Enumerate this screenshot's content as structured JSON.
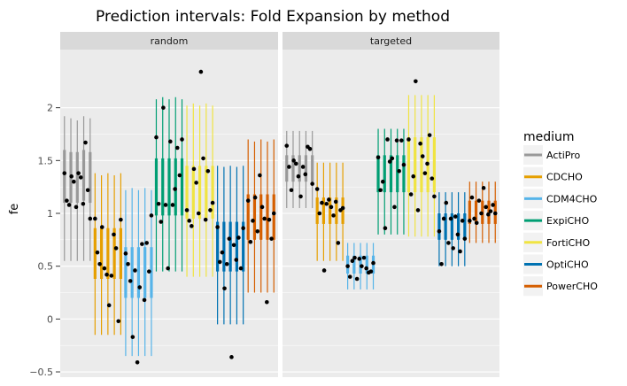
{
  "chart_data": {
    "type": "errorbar",
    "title": "Prediction intervals: Fold Expansion by method",
    "ylabel": "fe",
    "xlabel": "",
    "ylim": [
      -0.55,
      2.55
    ],
    "yticks": [
      -0.5,
      0,
      0.5,
      1,
      1.5,
      2
    ],
    "ytick_labels": [
      "−0.5",
      "0",
      "0.5",
      "1",
      "1.5",
      "2"
    ],
    "facets": [
      "random",
      "targeted"
    ],
    "legend": {
      "title": "medium",
      "position": "right",
      "entries": [
        {
          "label": "ActiPro",
          "color": "#999999"
        },
        {
          "label": "CDCHO",
          "color": "#E69F00"
        },
        {
          "label": "CDM4CHO",
          "color": "#56B4E9"
        },
        {
          "label": "ExpiCHO",
          "color": "#009E73"
        },
        {
          "label": "FortiCHO",
          "color": "#F0E442"
        },
        {
          "label": "OptiCHO",
          "color": "#0072B2"
        },
        {
          "label": "PowerCHO",
          "color": "#D55E00"
        }
      ]
    },
    "panels": [
      {
        "facet": "random",
        "groups": [
          {
            "medium": "ActiPro",
            "intervals": [
              [
                0.55,
                1.92,
                1.1,
                1.6
              ],
              [
                0.55,
                1.9,
                1.1,
                1.58
              ],
              [
                0.55,
                1.88,
                1.1,
                1.58
              ],
              [
                0.55,
                1.92,
                1.12,
                1.6
              ],
              [
                0.55,
                1.9,
                1.1,
                1.58
              ]
            ],
            "points": [
              1.38,
              1.12,
              1.08,
              1.35,
              1.3,
              1.06,
              1.38,
              1.34,
              1.09,
              1.67,
              1.22,
              0.95
            ]
          },
          {
            "medium": "CDCHO",
            "intervals": [
              [
                -0.15,
                1.38,
                0.38,
                0.86
              ],
              [
                -0.15,
                1.36,
                0.38,
                0.86
              ],
              [
                -0.15,
                1.38,
                0.38,
                0.86
              ],
              [
                -0.15,
                1.36,
                0.38,
                0.86
              ],
              [
                -0.15,
                1.38,
                0.38,
                0.86
              ]
            ],
            "points": [
              0.95,
              0.63,
              0.52,
              0.87,
              0.48,
              0.42,
              0.13,
              0.41,
              0.8,
              0.67,
              -0.02,
              0.94
            ]
          },
          {
            "medium": "CDM4CHO",
            "intervals": [
              [
                -0.35,
                1.22,
                0.2,
                0.68
              ],
              [
                -0.35,
                1.24,
                0.2,
                0.68
              ],
              [
                -0.35,
                1.22,
                0.2,
                0.68
              ],
              [
                -0.35,
                1.24,
                0.2,
                0.68
              ],
              [
                -0.35,
                1.22,
                0.2,
                0.68
              ]
            ],
            "points": [
              0.62,
              0.52,
              0.36,
              -0.17,
              0.46,
              -0.41,
              0.3,
              0.71,
              0.18,
              0.72,
              0.45,
              0.98
            ]
          },
          {
            "medium": "ExpiCHO",
            "intervals": [
              [
                0.45,
                2.08,
                0.98,
                1.52
              ],
              [
                0.45,
                2.1,
                0.98,
                1.52
              ],
              [
                0.45,
                2.08,
                0.98,
                1.52
              ],
              [
                0.45,
                2.1,
                0.98,
                1.52
              ],
              [
                0.45,
                2.08,
                0.98,
                1.52
              ]
            ],
            "points": [
              1.72,
              1.09,
              0.92,
              2.0,
              1.08,
              0.48,
              1.68,
              1.08,
              1.23,
              1.62,
              1.36,
              1.7
            ]
          },
          {
            "medium": "FortiCHO",
            "intervals": [
              [
                0.4,
                2.02,
                0.95,
                1.45
              ],
              [
                0.4,
                2.04,
                0.95,
                1.45
              ],
              [
                0.4,
                2.02,
                0.95,
                1.45
              ],
              [
                0.4,
                2.04,
                0.95,
                1.45
              ],
              [
                0.4,
                2.02,
                0.95,
                1.45
              ]
            ],
            "points": [
              1.03,
              0.93,
              0.88,
              1.42,
              1.29,
              1.0,
              2.34,
              1.52,
              0.94,
              1.4,
              1.03,
              1.1
            ]
          },
          {
            "medium": "OptiCHO",
            "intervals": [
              [
                -0.05,
                1.45,
                0.45,
                0.92
              ],
              [
                -0.05,
                1.44,
                0.45,
                0.92
              ],
              [
                -0.05,
                1.45,
                0.45,
                0.92
              ],
              [
                -0.05,
                1.44,
                0.45,
                0.92
              ],
              [
                -0.05,
                1.45,
                0.45,
                0.92
              ]
            ],
            "points": [
              0.87,
              0.54,
              0.63,
              0.29,
              0.52,
              0.76,
              -0.36,
              0.7,
              0.56,
              0.77,
              0.48,
              0.86
            ]
          },
          {
            "medium": "PowerCHO",
            "intervals": [
              [
                0.25,
                1.7,
                0.75,
                1.18
              ],
              [
                0.25,
                1.68,
                0.75,
                1.18
              ],
              [
                0.25,
                1.7,
                0.75,
                1.18
              ],
              [
                0.25,
                1.68,
                0.75,
                1.18
              ],
              [
                0.25,
                1.7,
                0.75,
                1.18
              ]
            ],
            "points": [
              1.12,
              0.73,
              0.93,
              1.15,
              0.83,
              1.36,
              1.06,
              0.95,
              0.16,
              0.94,
              0.76,
              1.0
            ]
          }
        ]
      },
      {
        "facet": "targeted",
        "groups": [
          {
            "medium": "ActiPro",
            "intervals": [
              [
                1.05,
                1.78,
                1.3,
                1.55
              ],
              [
                1.05,
                1.78,
                1.3,
                1.55
              ],
              [
                1.05,
                1.78,
                1.3,
                1.55
              ],
              [
                1.05,
                1.78,
                1.3,
                1.55
              ],
              [
                1.05,
                1.78,
                1.3,
                1.55
              ]
            ],
            "points": [
              1.64,
              1.44,
              1.22,
              1.5,
              1.47,
              1.35,
              1.16,
              1.44,
              1.37,
              1.63,
              1.61,
              1.28
            ]
          },
          {
            "medium": "CDCHO",
            "intervals": [
              [
                0.55,
                1.48,
                0.9,
                1.15
              ],
              [
                0.55,
                1.48,
                0.9,
                1.15
              ],
              [
                0.55,
                1.48,
                0.9,
                1.15
              ],
              [
                0.55,
                1.48,
                0.9,
                1.15
              ],
              [
                0.55,
                1.48,
                0.9,
                1.15
              ]
            ],
            "points": [
              1.23,
              1.0,
              1.1,
              0.46,
              1.09,
              1.13,
              1.06,
              0.98,
              1.11,
              0.72,
              1.03,
              1.05
            ]
          },
          {
            "medium": "CDM4CHO",
            "intervals": [
              [
                0.28,
                0.72,
                0.43,
                0.6
              ],
              [
                0.28,
                0.72,
                0.43,
                0.6
              ],
              [
                0.28,
                0.72,
                0.43,
                0.6
              ],
              [
                0.28,
                0.72,
                0.43,
                0.6
              ],
              [
                0.28,
                0.72,
                0.43,
                0.6
              ]
            ],
            "points": [
              0.5,
              0.4,
              0.55,
              0.58,
              0.38,
              0.57,
              0.5,
              0.58,
              0.48,
              0.44,
              0.45,
              0.53
            ]
          },
          {
            "medium": "ExpiCHO",
            "intervals": [
              [
                0.8,
                1.8,
                1.2,
                1.55
              ],
              [
                0.8,
                1.8,
                1.2,
                1.55
              ],
              [
                0.8,
                1.8,
                1.2,
                1.55
              ],
              [
                0.8,
                1.8,
                1.2,
                1.55
              ],
              [
                0.8,
                1.8,
                1.2,
                1.55
              ]
            ],
            "points": [
              1.53,
              1.22,
              1.3,
              0.86,
              1.7,
              1.49,
              1.52,
              1.06,
              1.69,
              1.4,
              1.69,
              1.46
            ]
          },
          {
            "medium": "FortiCHO",
            "intervals": [
              [
                0.78,
                2.12,
                1.2,
                1.72
              ],
              [
                0.78,
                2.12,
                1.2,
                1.72
              ],
              [
                0.78,
                2.12,
                1.2,
                1.72
              ],
              [
                0.78,
                2.12,
                1.2,
                1.72
              ],
              [
                0.78,
                2.12,
                1.2,
                1.72
              ]
            ],
            "points": [
              1.7,
              1.18,
              1.35,
              2.25,
              1.03,
              1.66,
              1.54,
              1.38,
              1.47,
              1.74,
              1.33,
              1.16
            ]
          },
          {
            "medium": "OptiCHO",
            "intervals": [
              [
                0.5,
                1.2,
                0.75,
                1.0
              ],
              [
                0.5,
                1.2,
                0.75,
                1.0
              ],
              [
                0.5,
                1.2,
                0.75,
                1.0
              ],
              [
                0.5,
                1.2,
                0.75,
                1.0
              ],
              [
                0.5,
                1.2,
                0.75,
                1.0
              ]
            ],
            "points": [
              0.83,
              0.52,
              0.95,
              1.1,
              0.72,
              0.95,
              0.67,
              0.97,
              0.8,
              0.64,
              0.93,
              0.76
            ]
          },
          {
            "medium": "PowerCHO",
            "intervals": [
              [
                0.72,
                1.3,
                0.9,
                1.12
              ],
              [
                0.72,
                1.3,
                0.9,
                1.12
              ],
              [
                0.72,
                1.3,
                0.9,
                1.12
              ],
              [
                0.72,
                1.3,
                0.9,
                1.12
              ],
              [
                0.72,
                1.3,
                0.9,
                1.12
              ]
            ],
            "points": [
              0.93,
              1.15,
              0.95,
              0.91,
              1.12,
              1.0,
              1.24,
              1.06,
              0.99,
              1.02,
              1.08,
              1.0
            ]
          }
        ]
      }
    ]
  }
}
